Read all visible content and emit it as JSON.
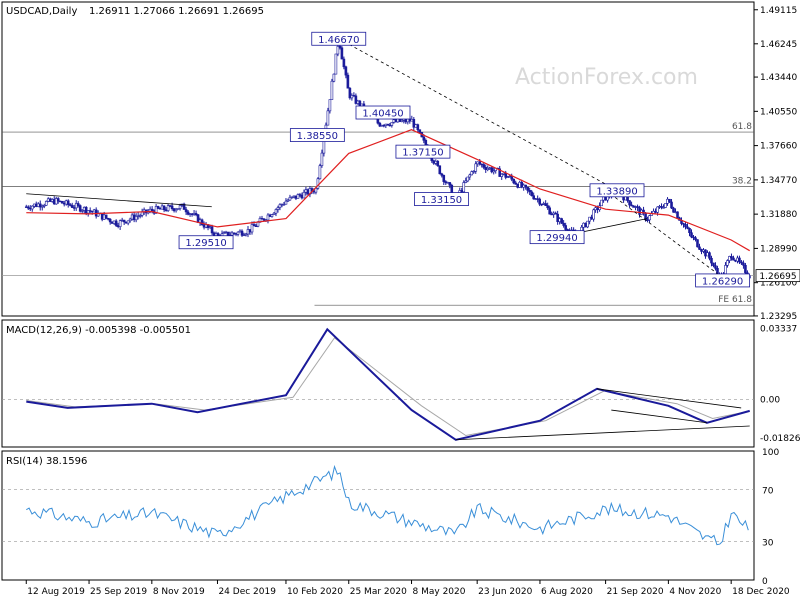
{
  "header": {
    "symbol_text": "USDCAD,Daily",
    "ohlc_text": "1.26911 1.27066 1.26691 1.26695",
    "watermark": "ActionForex.com"
  },
  "colors": {
    "candle": "#1a1a9a",
    "ma": "#e02020",
    "macd": "#1a1a9a",
    "signal": "#a8a8a8",
    "rsi": "#3a8fd8",
    "trend": "#000000",
    "grid": "#d0d0d0"
  },
  "chart_data": [
    {
      "type": "candlestick",
      "name": "USDCAD,Daily",
      "ylim": [
        1.2329,
        1.4977
      ],
      "price_ticks": [
        "1.49115",
        "1.46245",
        "1.43440",
        "1.40550",
        "1.37660",
        "1.34770",
        "1.31880",
        "1.28990",
        "1.26100",
        "1.23295"
      ],
      "current_price": "1.26695",
      "x_tick_labels": [
        "12 Aug 2019",
        "25 Sep 2019",
        "8 Nov 2019",
        "24 Dec 2019",
        "10 Feb 2020",
        "25 Mar 2020",
        "8 May 2020",
        "23 Jun 2020",
        "6 Aug 2020",
        "21 Sep 2020",
        "4 Nov 2020",
        "18 Dec 2020"
      ],
      "price_path": [
        [
          "12 Aug 2019",
          1.325
        ],
        [
          "1 Sep 2019",
          1.33
        ],
        [
          "25 Sep 2019",
          1.322
        ],
        [
          "15 Oct 2019",
          1.311
        ],
        [
          "8 Nov 2019",
          1.322
        ],
        [
          "30 Nov 2019",
          1.325
        ],
        [
          "24 Dec 2019",
          1.3
        ],
        [
          "15 Jan 2020",
          1.305
        ],
        [
          "10 Feb 2020",
          1.33
        ],
        [
          "2 Mar 2020",
          1.34
        ],
        [
          "18 Mar 2020",
          1.4667
        ],
        [
          "25 Mar 2020",
          1.42
        ],
        [
          "15 Apr 2020",
          1.395
        ],
        [
          "8 May 2020",
          1.398
        ],
        [
          "20 May 2020",
          1.3715
        ],
        [
          "8 Jun 2020",
          1.3315
        ],
        [
          "23 Jun 2020",
          1.362
        ],
        [
          "15 Jul 2020",
          1.35
        ],
        [
          "6 Aug 2020",
          1.33
        ],
        [
          "31 Aug 2020",
          1.2994
        ],
        [
          "21 Sep 2020",
          1.333
        ],
        [
          "29 Sep 2020",
          1.3389
        ],
        [
          "20 Oct 2020",
          1.315
        ],
        [
          "4 Nov 2020",
          1.33
        ],
        [
          "20 Nov 2020",
          1.3
        ],
        [
          "4 Dec 2020",
          1.28
        ],
        [
          "10 Dec 2020",
          1.2629
        ],
        [
          "18 Dec 2020",
          1.285
        ],
        [
          "31 Dec 2020",
          1.267
        ]
      ],
      "moving_average_path": [
        [
          "12 Aug 2019",
          1.32
        ],
        [
          "25 Sep 2019",
          1.319
        ],
        [
          "8 Nov 2019",
          1.321
        ],
        [
          "24 Dec 2019",
          1.308
        ],
        [
          "10 Feb 2020",
          1.315
        ],
        [
          "25 Mar 2020",
          1.37
        ],
        [
          "8 May 2020",
          1.39
        ],
        [
          "23 Jun 2020",
          1.365
        ],
        [
          "6 Aug 2020",
          1.34
        ],
        [
          "21 Sep 2020",
          1.323
        ],
        [
          "4 Nov 2020",
          1.318
        ],
        [
          "18 Dec 2020",
          1.297
        ],
        [
          "31 Dec 2020",
          1.288
        ]
      ],
      "annotations": [
        {
          "text": "1.46670",
          "date": "18 Mar 2020",
          "price": 1.4667
        },
        {
          "text": "1.38550",
          "date": "3 Mar 2020",
          "price": 1.3855
        },
        {
          "text": "1.40450",
          "date": "18 Apr 2020",
          "price": 1.4045
        },
        {
          "text": "1.37150",
          "date": "16 May 2020",
          "price": 1.3715
        },
        {
          "text": "1.33150",
          "date": "29 May 2020",
          "price": 1.3315
        },
        {
          "text": "1.29510",
          "date": "16 Dec 2019",
          "price": 1.2951
        },
        {
          "text": "1.29940",
          "date": "18 Aug 2020",
          "price": 1.2994
        },
        {
          "text": "1.33890",
          "date": "29 Sep 2020",
          "price": 1.3389
        },
        {
          "text": "1.26290",
          "date": "12 Dec 2020",
          "price": 1.2629
        }
      ],
      "horizontal_levels": [
        {
          "label": "61.8",
          "price": 1.388
        },
        {
          "label": "38.2",
          "price": 1.342
        },
        {
          "label": "FE 61.8",
          "price": 1.242
        }
      ]
    },
    {
      "type": "line",
      "name": "MACD(12,26,9) -0.005398 -0.005501",
      "ylim": [
        -0.0224,
        0.0374
      ],
      "ticks": [
        "0.03337",
        "0.00",
        "-0.018262"
      ],
      "macd_path": [
        [
          "12 Aug 2019",
          -0.001
        ],
        [
          "10 Sep 2019",
          -0.004
        ],
        [
          "8 Nov 2019",
          -0.002
        ],
        [
          "10 Dec 2019",
          -0.006
        ],
        [
          "10 Feb 2020",
          0.002
        ],
        [
          "10 Mar 2020",
          0.033
        ],
        [
          "8 May 2020",
          -0.005
        ],
        [
          "8 Jun 2020",
          -0.019
        ],
        [
          "6 Aug 2020",
          -0.01
        ],
        [
          "15 Sep 2020",
          0.005
        ],
        [
          "4 Nov 2020",
          -0.003
        ],
        [
          "1 Dec 2020",
          -0.011
        ],
        [
          "31 Dec 2020",
          -0.0054
        ]
      ],
      "signal_path": [
        [
          "12 Aug 2019",
          -0.0005
        ],
        [
          "15 Sep 2019",
          -0.0035
        ],
        [
          "10 Nov 2019",
          -0.002
        ],
        [
          "15 Dec 2019",
          -0.005
        ],
        [
          "15 Feb 2020",
          0.001
        ],
        [
          "15 Mar 2020",
          0.029
        ],
        [
          "15 May 2020",
          -0.003
        ],
        [
          "15 Jun 2020",
          -0.017
        ],
        [
          "10 Aug 2020",
          -0.01
        ],
        [
          "20 Sep 2020",
          0.004
        ],
        [
          "10 Nov 2020",
          -0.002
        ],
        [
          "5 Dec 2020",
          -0.009
        ],
        [
          "31 Dec 2020",
          -0.0055
        ]
      ]
    },
    {
      "type": "line",
      "name": "RSI(14) 38.1596",
      "ylim": [
        0,
        100
      ],
      "ticks": [
        "100",
        "70",
        "30",
        "0"
      ],
      "rsi_path": [
        [
          "12 Aug 2019",
          55
        ],
        [
          "25 Sep 2019",
          45
        ],
        [
          "8 Nov 2019",
          52
        ],
        [
          "24 Dec 2019",
          35
        ],
        [
          "10 Feb 2020",
          65
        ],
        [
          "18 Mar 2020",
          85
        ],
        [
          "25 Mar 2020",
          60
        ],
        [
          "8 May 2020",
          45
        ],
        [
          "8 Jun 2020",
          35
        ],
        [
          "23 Jun 2020",
          55
        ],
        [
          "6 Aug 2020",
          40
        ],
        [
          "21 Sep 2020",
          55
        ],
        [
          "4 Nov 2020",
          50
        ],
        [
          "1 Dec 2020",
          32
        ],
        [
          "10 Dec 2020",
          28
        ],
        [
          "18 Dec 2020",
          52
        ],
        [
          "31 Dec 2020",
          38
        ]
      ]
    }
  ]
}
